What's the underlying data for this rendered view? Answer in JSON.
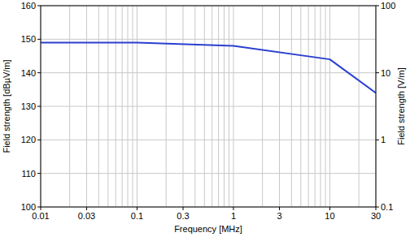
{
  "chart_data": {
    "type": "line",
    "x_label": "Frequency [MHz]",
    "y_label": "Field strength [dBµV/m]",
    "y2label": "Field strength [V/m]",
    "x": [
      0.01,
      0.1,
      1,
      10,
      30
    ],
    "values": [
      149,
      149,
      148,
      144,
      134
    ],
    "color": "#2a3fd0",
    "xlim": [
      0.01,
      30
    ],
    "xticks": [
      0.01,
      0.03,
      0.1,
      0.3,
      1,
      3,
      10,
      30
    ],
    "ylim": [
      100,
      160
    ],
    "yticks": [
      100,
      110,
      120,
      130,
      140,
      150,
      160
    ],
    "y2lim": [
      0.1,
      100
    ],
    "y2ticks": [
      0.1,
      1,
      10,
      100
    ],
    "log": "x",
    "grid": true
  }
}
